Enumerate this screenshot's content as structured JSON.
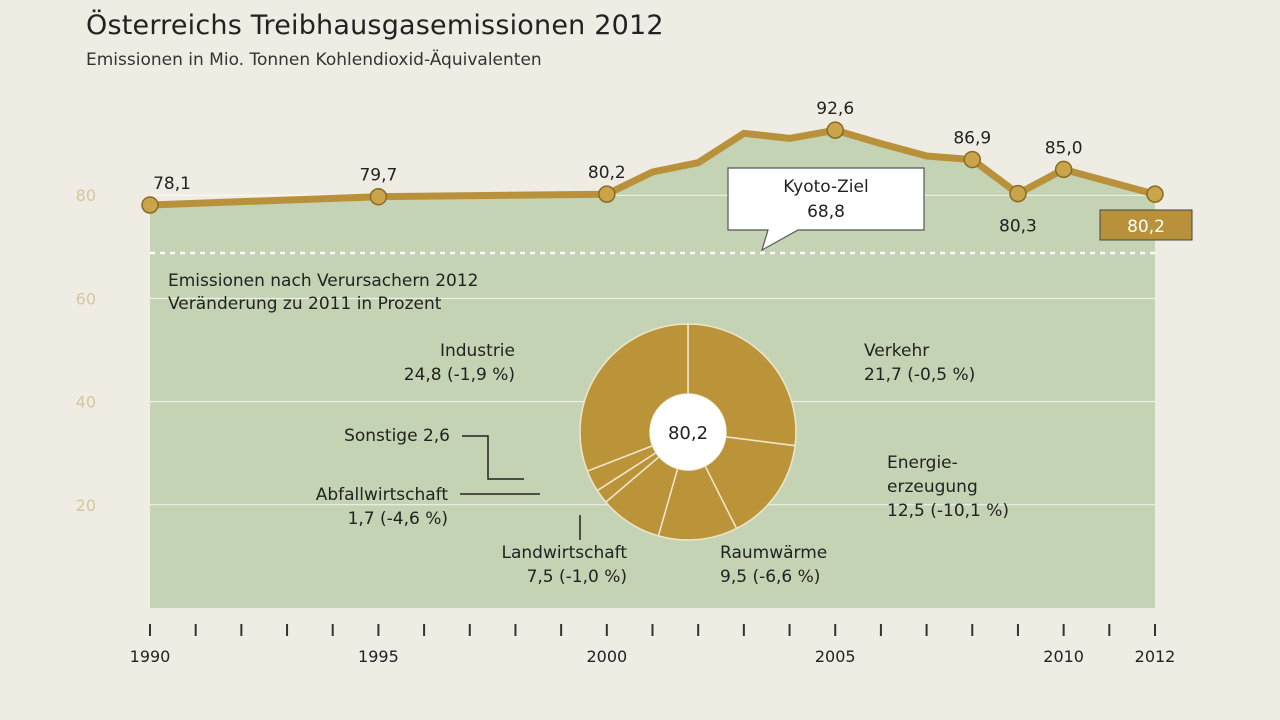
{
  "title": "Österreichs Treibhausgasemissionen 2012",
  "subtitle": "Emissionen in Mio. Tonnen Kohlendioxid-Äquivalenten",
  "colors": {
    "background": "#efece3",
    "area": "#c3d3b3",
    "line": "#b8913a",
    "donut": "#bb943a",
    "accent_box": "#b8913a",
    "axis_tick_label": "#d9c59b"
  },
  "chart_data": [
    {
      "type": "line",
      "title": "Österreichs Treibhausgasemissionen 2012",
      "ylabel": "",
      "xlabel": "",
      "x": [
        1990,
        1995,
        2000,
        2001,
        2002,
        2003,
        2004,
        2005,
        2006,
        2007,
        2008,
        2009,
        2010,
        2012
      ],
      "series": [
        {
          "values": [
            78.1,
            79.7,
            80.2,
            84.5,
            86.3,
            92.0,
            91.0,
            92.6,
            90.0,
            87.6,
            86.9,
            80.3,
            85.0,
            80.2
          ]
        }
      ],
      "ylim": [
        0,
        100
      ],
      "yticks": [
        20,
        40,
        60,
        80
      ],
      "xticks_labeled": [
        1990,
        1995,
        2000,
        2005,
        2010,
        2012
      ],
      "grid": true,
      "area_fill": true,
      "data_labels": [
        {
          "x": 1990,
          "label": "78,1"
        },
        {
          "x": 1995,
          "label": "79,7"
        },
        {
          "x": 2000,
          "label": "80,2"
        },
        {
          "x": 2005,
          "label": "92,6"
        },
        {
          "x": 2008,
          "label": "86,9"
        },
        {
          "x": 2009,
          "label": "80,3"
        },
        {
          "x": 2010,
          "label": "85,0"
        }
      ],
      "last_value_box": {
        "x": 2012,
        "label": "80,2"
      },
      "reference_line": {
        "value": 68.8,
        "label_line1": "Kyoto-Ziel",
        "label_line2": "68,8",
        "style": "dashed"
      }
    },
    {
      "type": "pie",
      "donut": true,
      "title": "Emissionen nach Verursachern 2012",
      "subtitle": "Veränderung zu 2011 in Prozent",
      "center_label": "80,2",
      "slices": [
        {
          "name": "Verkehr",
          "value": 21.7,
          "change": "-0,5 %",
          "label_line1": "Verkehr",
          "label_line2": "21,7 (-0,5 %)"
        },
        {
          "name": "Energieerzeugung",
          "value": 12.5,
          "change": "-10,1 %",
          "label_line1": "Energie-",
          "label_line2": "erzeugung",
          "label_line3": "12,5 (-10,1 %)"
        },
        {
          "name": "Raumwärme",
          "value": 9.5,
          "change": "-6,6 %",
          "label_line1": "Raumwärme",
          "label_line2": "9,5 (-6,6 %)"
        },
        {
          "name": "Landwirtschaft",
          "value": 7.5,
          "change": "-1,0 %",
          "label_line1": "Landwirtschaft",
          "label_line2": "7,5 (-1,0 %)"
        },
        {
          "name": "Abfallwirtschaft",
          "value": 1.7,
          "change": "-4,6 %",
          "label_line1": "Abfallwirtschaft",
          "label_line2": "1,7 (-4,6 %)"
        },
        {
          "name": "Sonstige",
          "value": 2.6,
          "change": "",
          "label_line1": "Sonstige 2,6"
        },
        {
          "name": "Industrie",
          "value": 24.8,
          "change": "-1,9 %",
          "label_line1": "Industrie",
          "label_line2": "24,8 (-1,9 %)"
        }
      ]
    }
  ]
}
